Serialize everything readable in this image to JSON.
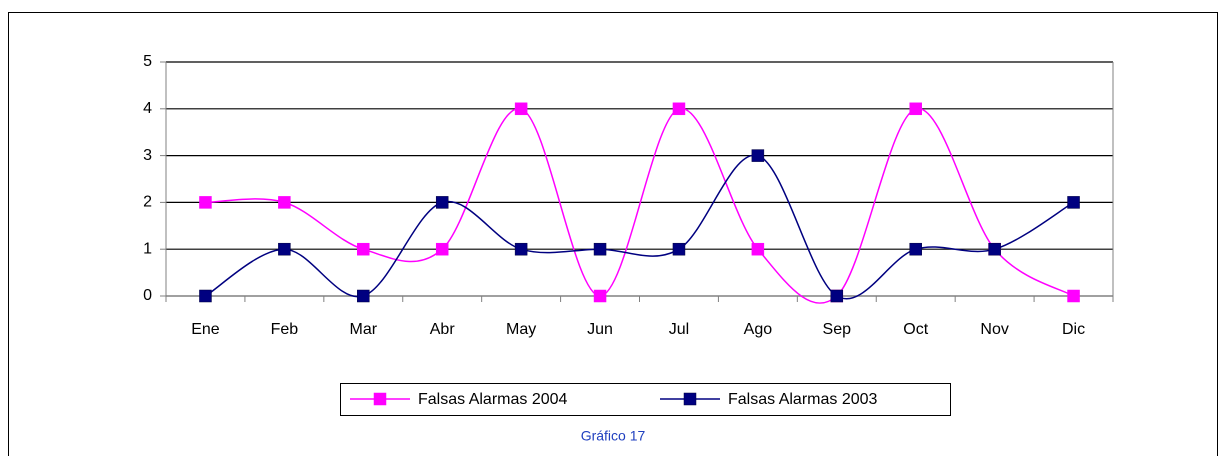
{
  "chart_data": {
    "type": "line",
    "categories": [
      "Ene",
      "Feb",
      "Mar",
      "Abr",
      "May",
      "Jun",
      "Jul",
      "Ago",
      "Sep",
      "Oct",
      "Nov",
      "Dic"
    ],
    "series": [
      {
        "name": "Falsas Alarmas 2004",
        "color": "#ff00ff",
        "values": [
          2,
          2,
          1,
          1,
          4,
          0,
          4,
          1,
          0,
          4,
          1,
          0
        ]
      },
      {
        "name": "Falsas Alarmas 2003",
        "color": "#000080",
        "values": [
          0,
          1,
          0,
          2,
          1,
          1,
          1,
          3,
          0,
          1,
          1,
          2
        ]
      }
    ],
    "ylim": [
      0,
      5
    ],
    "yticks": [
      0,
      1,
      2,
      3,
      4,
      5
    ],
    "grid": true,
    "smooth": true,
    "legend": "bottom",
    "caption": "Gráfico 17"
  }
}
